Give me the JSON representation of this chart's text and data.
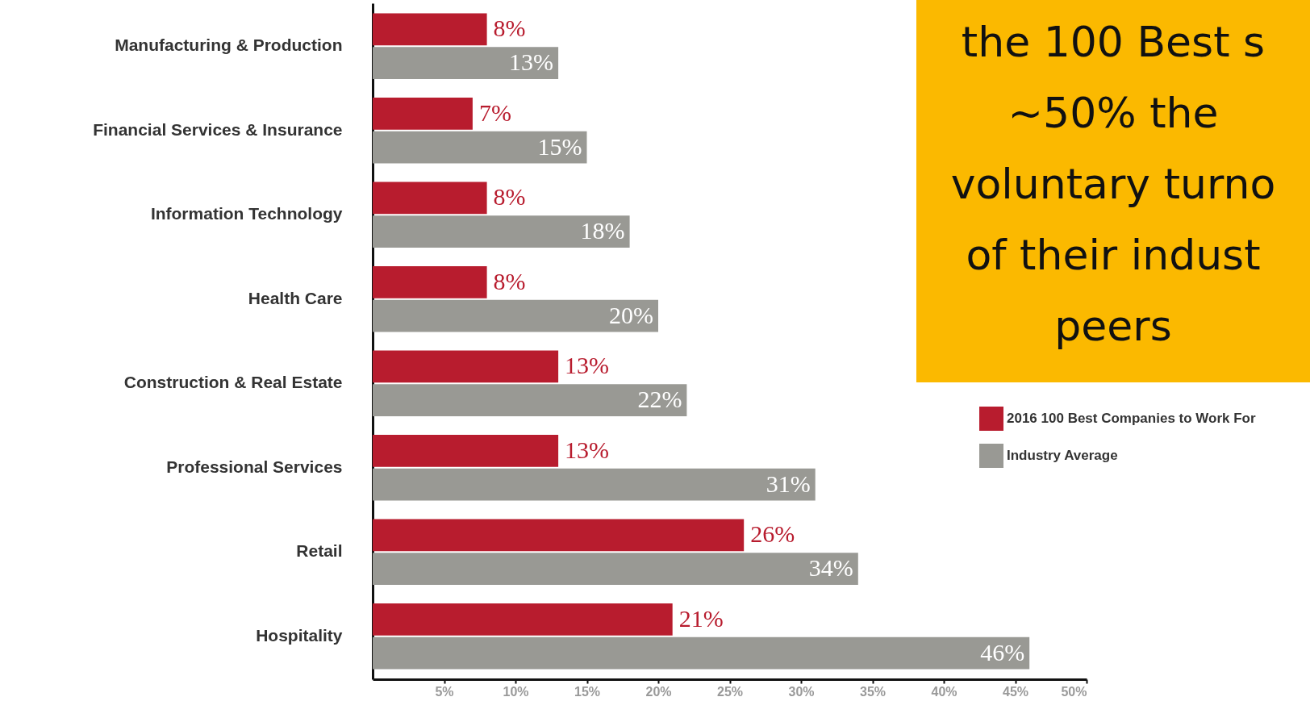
{
  "chart_data": {
    "type": "bar",
    "orientation": "horizontal",
    "categories": [
      "Manufacturing & Production",
      "Financial Services & Insurance",
      "Information Technology",
      "Health Care",
      "Construction & Real Estate",
      "Professional Services",
      "Retail",
      "Hospitality"
    ],
    "series": [
      {
        "name": "2016 100 Best Companies to Work For",
        "color": "#b81c2e",
        "values": [
          8,
          7,
          8,
          8,
          13,
          13,
          26,
          21
        ],
        "value_labels": [
          "8%",
          "7%",
          "8%",
          "8%",
          "13%",
          "13%",
          "26%",
          "21%"
        ]
      },
      {
        "name": "Industry Average",
        "color": "#999994",
        "values": [
          13,
          15,
          18,
          20,
          22,
          31,
          34,
          46
        ],
        "value_labels": [
          "13%",
          "15%",
          "18%",
          "20%",
          "22%",
          "31%",
          "34%",
          "46%"
        ]
      }
    ],
    "xlim": [
      0,
      50
    ],
    "xticks": [
      {
        "value": 5,
        "label": "5%"
      },
      {
        "value": 10,
        "label": "10%"
      },
      {
        "value": 15,
        "label": "15%"
      },
      {
        "value": 20,
        "label": "20%"
      },
      {
        "value": 25,
        "label": "25%"
      },
      {
        "value": 30,
        "label": "30%"
      },
      {
        "value": 35,
        "label": "35%"
      },
      {
        "value": 40,
        "label": "40%"
      },
      {
        "value": 45,
        "label": "45%"
      },
      {
        "value": 50,
        "label": "50%"
      }
    ],
    "grid": false,
    "legend": "right",
    "annotations": [
      "the 100 Best s\n~50% the\nvoluntary turno\nof their indust\npeers"
    ]
  }
}
